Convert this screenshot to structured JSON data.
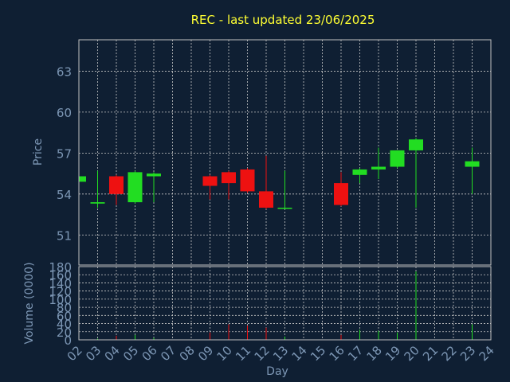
{
  "chart_data": {
    "type": "candlestick",
    "title": "REC - last updated 23/06/2025",
    "xlabel": "Day",
    "price_ylabel": "Price",
    "volume_ylabel": "Volume (0000)",
    "price_ylim": [
      48.8,
      65.3
    ],
    "price_ticks": [
      51,
      54,
      57,
      60,
      63
    ],
    "volume_ylim": [
      0,
      180
    ],
    "volume_ticks": [
      0,
      20,
      40,
      60,
      80,
      100,
      120,
      140,
      160,
      180
    ],
    "x_ticks": [
      "02",
      "03",
      "04",
      "05",
      "06",
      "07",
      "08",
      "09",
      "10",
      "11",
      "12",
      "13",
      "14",
      "15",
      "16",
      "17",
      "18",
      "19",
      "20",
      "21",
      "22",
      "23",
      "24"
    ],
    "grid": true,
    "colors": {
      "background": "#0f1f33",
      "up": "#22dd22",
      "down": "#ee1111",
      "axis": "#c0c0c0",
      "tick_text": "#7d97b5",
      "title": "#ffff33"
    },
    "candles": [
      {
        "day": "02",
        "open": 54.9,
        "close": 55.3,
        "high": 55.4,
        "low": 54.8,
        "volume": 0
      },
      {
        "day": "03",
        "open": 53.3,
        "close": 53.4,
        "high": 55.7,
        "low": 53.0,
        "volume": 3
      },
      {
        "day": "04",
        "open": 55.3,
        "close": 54.0,
        "high": 55.4,
        "low": 53.2,
        "volume": 10
      },
      {
        "day": "05",
        "open": 53.4,
        "close": 55.6,
        "high": 55.7,
        "low": 53.3,
        "volume": 12
      },
      {
        "day": "06",
        "open": 55.3,
        "close": 55.5,
        "high": 55.6,
        "low": 53.4,
        "volume": 5
      },
      {
        "day": "09",
        "open": 55.3,
        "close": 54.6,
        "high": 55.4,
        "low": 53.6,
        "volume": 18
      },
      {
        "day": "10",
        "open": 55.6,
        "close": 54.8,
        "high": 55.7,
        "low": 53.6,
        "volume": 38
      },
      {
        "day": "11",
        "open": 55.8,
        "close": 54.2,
        "high": 55.9,
        "low": 54.1,
        "volume": 35
      },
      {
        "day": "12",
        "open": 54.2,
        "close": 53.0,
        "high": 56.8,
        "low": 52.9,
        "volume": 30
      },
      {
        "day": "13",
        "open": 53.0,
        "close": 53.0,
        "high": 55.7,
        "low": 52.9,
        "volume": 8
      },
      {
        "day": "16",
        "open": 54.8,
        "close": 53.2,
        "high": 55.6,
        "low": 53.1,
        "volume": 12
      },
      {
        "day": "17",
        "open": 55.4,
        "close": 55.8,
        "high": 55.9,
        "low": 54.8,
        "volume": 25
      },
      {
        "day": "18",
        "open": 55.8,
        "close": 56.0,
        "high": 57.4,
        "low": 55.1,
        "volume": 22
      },
      {
        "day": "19",
        "open": 56.0,
        "close": 57.2,
        "high": 57.2,
        "low": 55.9,
        "volume": 18
      },
      {
        "day": "20",
        "open": 57.2,
        "close": 58.0,
        "high": 58.1,
        "low": 53.0,
        "volume": 168
      },
      {
        "day": "23",
        "open": 56.0,
        "close": 56.4,
        "high": 57.4,
        "low": 54.0,
        "volume": 38
      }
    ]
  }
}
